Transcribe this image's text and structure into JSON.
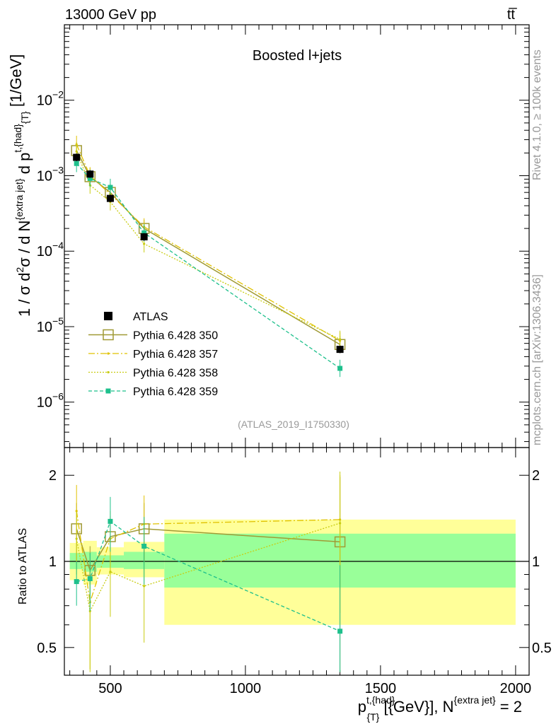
{
  "header": {
    "energy_label": "13000 GeV pp",
    "process_label": "tt̅"
  },
  "side_labels": {
    "rivet": "Rivet 4.1.0, ≥ 100k events",
    "mcplots": "mcplots.cern.ch [arXiv:1306.3436]"
  },
  "plot_title": "Boosted l+jets",
  "analysis_id": "(ATLAS_2019_I1750330)",
  "axis": {
    "ylabel_main": "1 / σ d²σ / d N{extra jet} d p t,{had} {T} [1/GeV]",
    "ylabel_ratio": "Ratio to ATLAS",
    "xlabel": "p t,{had} {T} [{GeV}], N{extra jet} = 2"
  },
  "colors": {
    "atlas": "#000000",
    "p350": "#a09a35",
    "p357": "#e0c200",
    "p358": "#c8cc10",
    "p359": "#1ec08c",
    "band_outer": "#ffff99",
    "band_inner": "#99ff99"
  },
  "chart_data": {
    "type": "line",
    "x_range": [
      330,
      2050
    ],
    "x_ticks": [
      500,
      1000,
      1500,
      2000
    ],
    "main": {
      "y_scale": "log",
      "y_range": [
        2.5e-07,
        0.1
      ],
      "y_ticks": [
        {
          "value": 0.01,
          "label": "10",
          "exp": "−2"
        },
        {
          "value": 0.001,
          "label": "10",
          "exp": "−3"
        },
        {
          "value": 0.0001,
          "label": "10",
          "exp": "−4"
        },
        {
          "value": 1e-05,
          "label": "10",
          "exp": "−5"
        },
        {
          "value": 1e-06,
          "label": "10",
          "exp": "−6"
        }
      ],
      "bins": [
        {
          "lo": 350,
          "hi": 400,
          "x": 375
        },
        {
          "lo": 400,
          "hi": 450,
          "x": 425
        },
        {
          "lo": 450,
          "hi": 550,
          "x": 500
        },
        {
          "lo": 550,
          "hi": 700,
          "x": 625
        },
        {
          "lo": 700,
          "hi": 2000,
          "x": 1350
        }
      ],
      "atlas": [
        0.00175,
        0.00105,
        0.0005,
        0.000155,
        5e-06
      ],
      "series": [
        {
          "name": "Pythia 6.428 350",
          "key": "p350",
          "values": [
            0.00215,
            0.00097,
            0.0006,
            0.0002,
            5.8e-06
          ]
        },
        {
          "name": "Pythia 6.428 357",
          "key": "p357",
          "values": [
            0.0026,
            0.001,
            0.00057,
            0.00021,
            6.5e-06
          ]
        },
        {
          "name": "Pythia 6.428 358",
          "key": "p358",
          "values": [
            0.0021,
            0.00075,
            0.00045,
            0.000125,
            6.8e-06
          ]
        },
        {
          "name": "Pythia 6.428 359",
          "key": "p359",
          "values": [
            0.00145,
            0.00092,
            0.0007,
            0.000175,
            2.8e-06
          ]
        }
      ],
      "legend": [
        "ATLAS",
        "Pythia 6.428 350",
        "Pythia 6.428 357",
        "Pythia 6.428 358",
        "Pythia 6.428 359"
      ],
      "legend_position": "lower-left"
    },
    "ratio": {
      "y_scale": "log",
      "y_range": [
        0.4,
        2.5
      ],
      "y_ticks": [
        {
          "value": 0.5,
          "label": "0.5"
        },
        {
          "value": 1,
          "label": "1"
        },
        {
          "value": 2,
          "label": "2"
        }
      ],
      "band_outer": [
        [
          0.86,
          1.16
        ],
        [
          0.83,
          1.18
        ],
        [
          0.9,
          1.12
        ],
        [
          0.88,
          1.17
        ],
        [
          0.6,
          1.4
        ]
      ],
      "band_inner": [
        [
          0.94,
          1.07
        ],
        [
          0.92,
          1.08
        ],
        [
          0.95,
          1.05
        ],
        [
          0.94,
          1.08
        ],
        [
          0.81,
          1.25
        ]
      ],
      "series": [
        {
          "key": "p350",
          "values": [
            1.3,
            0.93,
            1.22,
            1.3,
            1.17
          ],
          "err": [
            0.3,
            0.2,
            0.22,
            0.3,
            0.8
          ]
        },
        {
          "key": "p357",
          "values": [
            1.5,
            0.72,
            1.2,
            1.35,
            1.4
          ],
          "err": [
            0.35,
            0.3,
            0.3,
            0.35,
            0.6
          ]
        },
        {
          "key": "p358",
          "values": [
            1.2,
            0.67,
            0.92,
            0.82,
            1.36
          ],
          "err": [
            0.3,
            0.28,
            0.28,
            0.3,
            0.7
          ]
        },
        {
          "key": "p359",
          "values": [
            0.85,
            0.87,
            1.38,
            1.13,
            0.57
          ],
          "err": [
            0.15,
            0.2,
            0.3,
            0.3,
            0.4
          ]
        }
      ]
    }
  }
}
